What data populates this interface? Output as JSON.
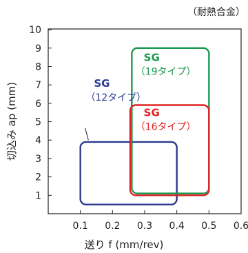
{
  "chart_data": {
    "type": "area",
    "note": "（耐熱合金）",
    "xlabel": "送り f (mm/rev)",
    "ylabel": "切込み ap (mm)",
    "xlim": [
      0.0,
      0.6
    ],
    "ylim": [
      0,
      10
    ],
    "xticks": [
      "0.1",
      "0.2",
      "0.3",
      "0.4",
      "0.5",
      "0.6"
    ],
    "xtick_values": [
      0.1,
      0.2,
      0.3,
      0.4,
      0.5,
      0.6
    ],
    "yticks": [
      "1",
      "2",
      "3",
      "4",
      "5",
      "6",
      "7",
      "8",
      "9",
      "10"
    ],
    "ytick_values": [
      1,
      2,
      3,
      4,
      5,
      6,
      7,
      8,
      9,
      10
    ],
    "grid": false,
    "regions": [
      {
        "line1": "SG",
        "line2": "（12タイプ）",
        "color": "#2b3990",
        "x_range": [
          0.1,
          0.4
        ],
        "y_range": [
          0.5,
          3.9
        ],
        "label_anchor": [
          0.125,
          6.9
        ],
        "leader_to": [
          0.125,
          4.0
        ],
        "leader_from": [
          0.085,
          5.25
        ]
      },
      {
        "line1": "SG",
        "line2": "（19タイプ）",
        "color": "#1a9850",
        "x_range": [
          0.26,
          0.5
        ],
        "y_range": [
          1.1,
          9.0
        ],
        "label_anchor": [
          0.28,
          8.3
        ]
      },
      {
        "line1": "SG",
        "line2": "（16タイプ）",
        "color": "#e02020",
        "x_range": [
          0.255,
          0.5
        ],
        "y_range": [
          1.0,
          5.9
        ],
        "label_anchor": [
          0.28,
          5.3
        ]
      }
    ]
  }
}
